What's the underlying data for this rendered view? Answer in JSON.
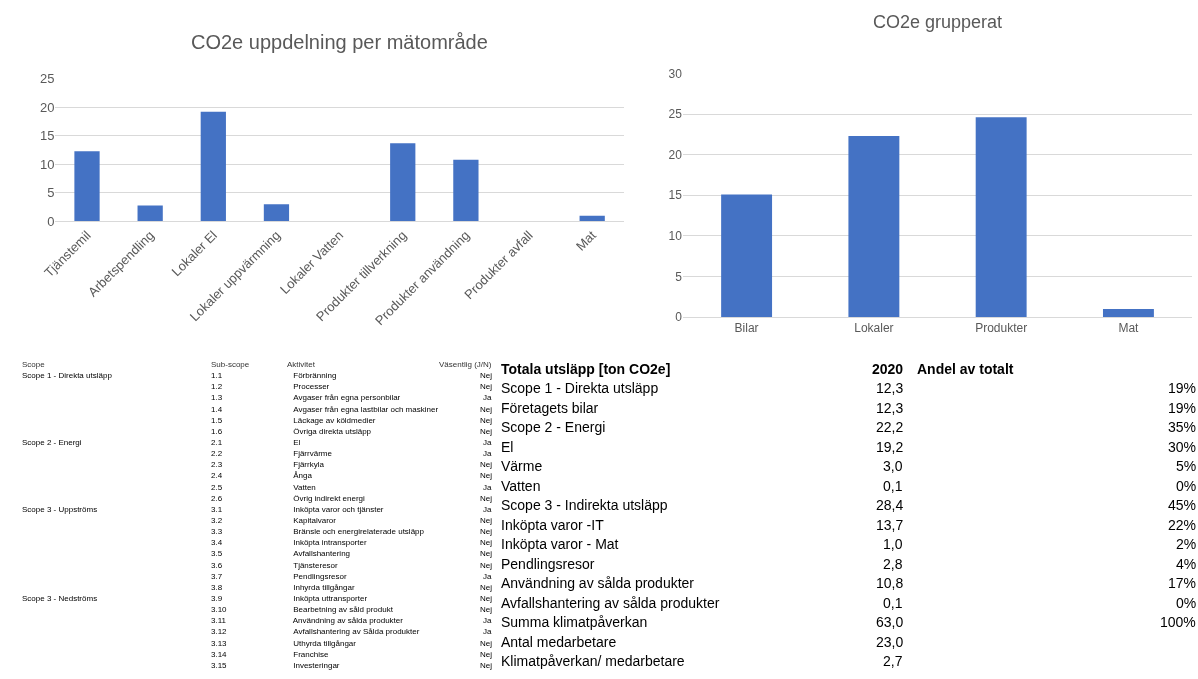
{
  "chart_data": [
    {
      "type": "bar",
      "title": "CO2e uppdelning per mätområde",
      "categories": [
        "Tjänstemil",
        "Arbetspendling",
        "Lokaler El",
        "Lokaler uppvärmning",
        "Lokaler Vatten",
        "Produkter tillverkning",
        "Produkter användning",
        "Produkter avfall",
        "Mat"
      ],
      "values": [
        12.3,
        2.8,
        19.2,
        3.0,
        null,
        13.7,
        10.8,
        null,
        1.0
      ],
      "color": "#4472c4",
      "ylim": [
        0,
        25
      ],
      "yticks": [
        0,
        5,
        10,
        15,
        20,
        25
      ],
      "grid": "y"
    },
    {
      "type": "bar",
      "title": "CO2e grupperat",
      "categories": [
        "Bilar",
        "Lokaler",
        "Produkter",
        "Mat"
      ],
      "values": [
        15.1,
        22.3,
        24.6,
        1.0
      ],
      "color": "#4472c4",
      "ylim": [
        0,
        30
      ],
      "yticks": [
        0,
        5,
        10,
        15,
        20,
        25,
        30
      ],
      "grid": "y"
    },
    {
      "type": "other",
      "categories": [
        "Scope",
        "Sub-scope",
        "Aktivitet",
        "Väsentlig (J/N)"
      ],
      "annotations": [
        "Scope 1 - Direkta utsläpp",
        "1.1",
        "Förbränning",
        "Nej",
        null,
        "1.2",
        "Processer",
        "Nej",
        null,
        "1.3",
        "Avgaser från egna personbilar",
        "Ja",
        null,
        "1.4",
        "Avgaser från egna lastbilar och maskiner",
        "Nej",
        null,
        "1.5",
        "Läckage av köldmedier",
        "Nej",
        null,
        "1.6",
        "Övriga direkta utsläpp",
        "Nej",
        "Scope 2 - Energi",
        "2.1",
        "El",
        "Ja",
        null,
        "2.2",
        "Fjärrvärme",
        "Ja",
        null,
        "2.3",
        "Fjärrkyla",
        "Nej",
        null,
        "2.4",
        "Ånga",
        "Nej",
        null,
        "2.5",
        "Vatten",
        "Ja",
        null,
        "2.6",
        "Övrig indirekt energi",
        "Nej",
        "Scope 3 - Uppströms",
        "3.1",
        "Inköpta varor och tjänster",
        "Ja",
        null,
        "3.2",
        "Kapitalvaror",
        "Nej",
        null,
        "3.3",
        "Bränsle och energirelaterade utsläpp",
        "Nej",
        null,
        "3.4",
        "Inköpta intransporter",
        "Nej",
        null,
        "3.5",
        "Avfallshantering",
        "Nej",
        null,
        "3.6",
        "Tjänsteresor",
        "Nej",
        null,
        "3.7",
        "Pendlingsresor",
        "Ja",
        null,
        "3.8",
        "Inhyrda tillgångar",
        "Nej",
        "Scope 3 - Nedströms",
        "3.9",
        "Inköpta uttransporter",
        "Nej",
        null,
        "3.10",
        "Bearbetning av såld produkt",
        "Nej",
        null,
        "3.11",
        "Användning av sålda produkter",
        "Ja",
        null,
        "3.12",
        "Avfallshantering av Sålda produkter",
        "Ja",
        null,
        "3.13",
        "Uthyrda tillgångar",
        "Nej",
        null,
        "3.14",
        "Franchise",
        "Nej",
        null,
        "3.15",
        "Investeringar",
        "Nej"
      ]
    },
    {
      "type": "other",
      "categories": [
        "Totala utsläpp [ton CO2e]",
        "2020",
        "Andel av totalt"
      ],
      "annotations": [
        "Scope 1 - Direkta utsläpp",
        "12,3",
        "19%",
        "Företagets bilar",
        "12,3",
        "19%",
        "Scope 2 - Energi",
        "22,2",
        "35%",
        "El",
        "19,2",
        "30%",
        "Värme",
        "3,0",
        "5%",
        "Vatten",
        "0,1",
        "0%",
        "Scope 3 - Indirekta utsläpp",
        "28,4",
        "45%",
        "Inköpta varor -IT",
        "13,7",
        "22%",
        "Inköpta varor - Mat",
        "1,0",
        "2%",
        "Pendlingsresor",
        "2,8",
        "4%",
        "Användning av sålda produkter",
        "10,8",
        "17%",
        "Avfallshantering av sålda produkter",
        "0,1",
        "0%",
        "Summa klimatpåverkan",
        "63,0",
        "100%",
        "Antal medarbetare",
        "23,0",
        null,
        "Klimatpåverkan/ medarbetare",
        "2,7",
        null
      ]
    }
  ]
}
